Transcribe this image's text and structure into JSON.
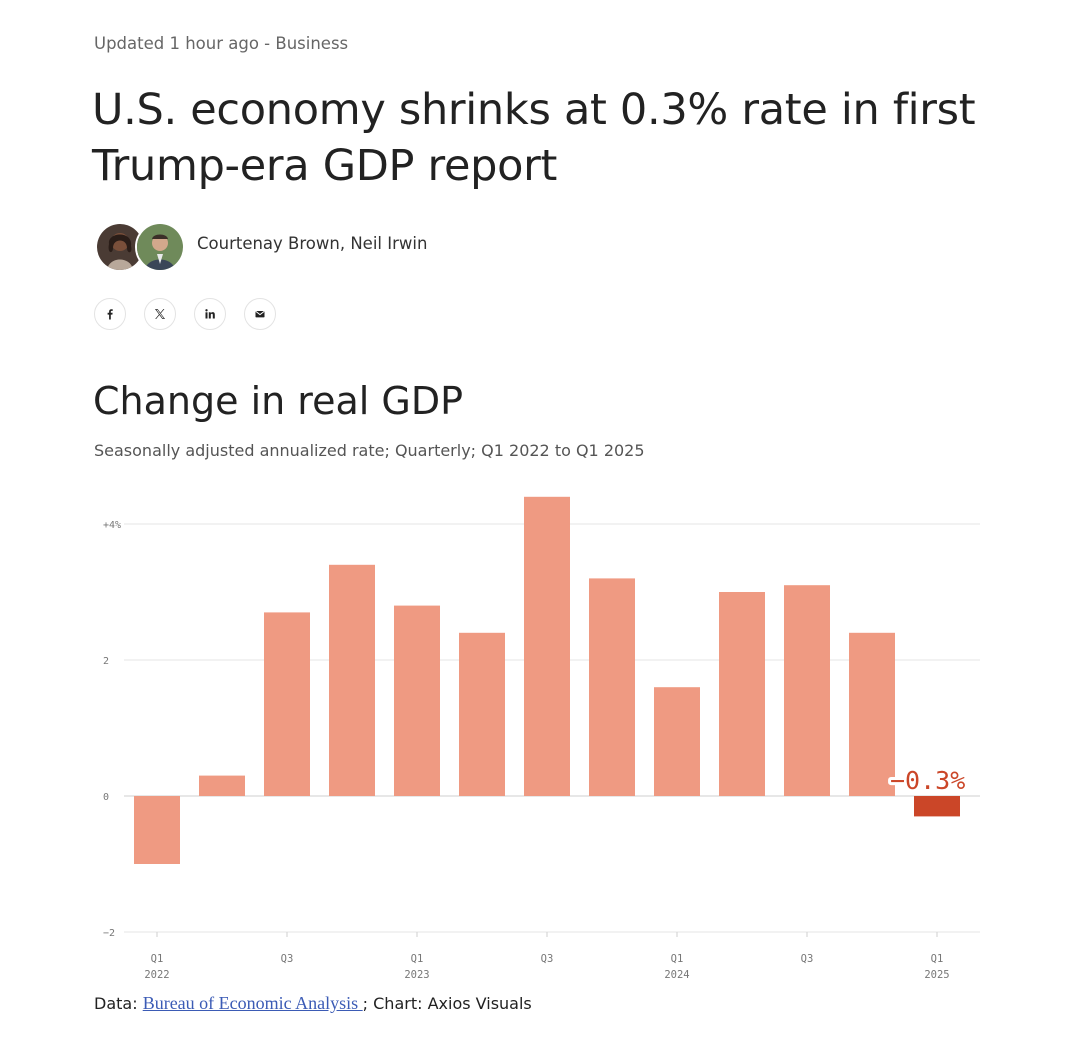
{
  "article": {
    "meta": "Updated 1 hour ago - Business",
    "headline": "U.S. economy shrinks at 0.3% rate in first Trump-era GDP report",
    "authors": "Courtenay Brown, Neil Irwin",
    "share": [
      {
        "icon": "facebook-icon"
      },
      {
        "icon": "x-icon"
      },
      {
        "icon": "linkedin-icon"
      },
      {
        "icon": "email-icon"
      }
    ]
  },
  "source": {
    "prefix": "Data: ",
    "link_text": "Bureau of Economic Analysis ",
    "suffix": "; Chart: Axios Visuals"
  },
  "colors": {
    "bar": "#ef9a82",
    "highlight": "#cb4628",
    "grid": "#e6e6e6",
    "axis_text": "#777777"
  },
  "chart_data": {
    "type": "bar",
    "title": "Change in real GDP",
    "subtitle": "Seasonally adjusted annualized rate; Quarterly; Q1 2022 to Q1 2025",
    "xlabel": "",
    "ylabel": "",
    "ylim": [
      -2,
      4.4
    ],
    "grid": true,
    "yticks": [
      {
        "value": 4,
        "label": "+4%"
      },
      {
        "value": 2,
        "label": "2"
      },
      {
        "value": 0,
        "label": "0"
      },
      {
        "value": -2,
        "label": "−2"
      }
    ],
    "categories": [
      "Q1 2022",
      "Q2 2022",
      "Q3 2022",
      "Q4 2022",
      "Q1 2023",
      "Q2 2023",
      "Q3 2023",
      "Q4 2023",
      "Q1 2024",
      "Q2 2024",
      "Q3 2024",
      "Q4 2024",
      "Q1 2025"
    ],
    "values": [
      -1.0,
      0.3,
      2.7,
      3.4,
      2.8,
      2.4,
      4.4,
      3.2,
      1.6,
      3.0,
      3.1,
      2.4,
      -0.3
    ],
    "xticks": [
      {
        "index": 0,
        "line1": "Q1",
        "line2": "2022"
      },
      {
        "index": 2,
        "line1": "Q3",
        "line2": ""
      },
      {
        "index": 4,
        "line1": "Q1",
        "line2": "2023"
      },
      {
        "index": 6,
        "line1": "Q3",
        "line2": ""
      },
      {
        "index": 8,
        "line1": "Q1",
        "line2": "2024"
      },
      {
        "index": 10,
        "line1": "Q3",
        "line2": ""
      },
      {
        "index": 12,
        "line1": "Q1",
        "line2": "2025"
      }
    ],
    "highlight_index": 12,
    "annotation": {
      "index": 12,
      "text": "−0.3%"
    }
  }
}
